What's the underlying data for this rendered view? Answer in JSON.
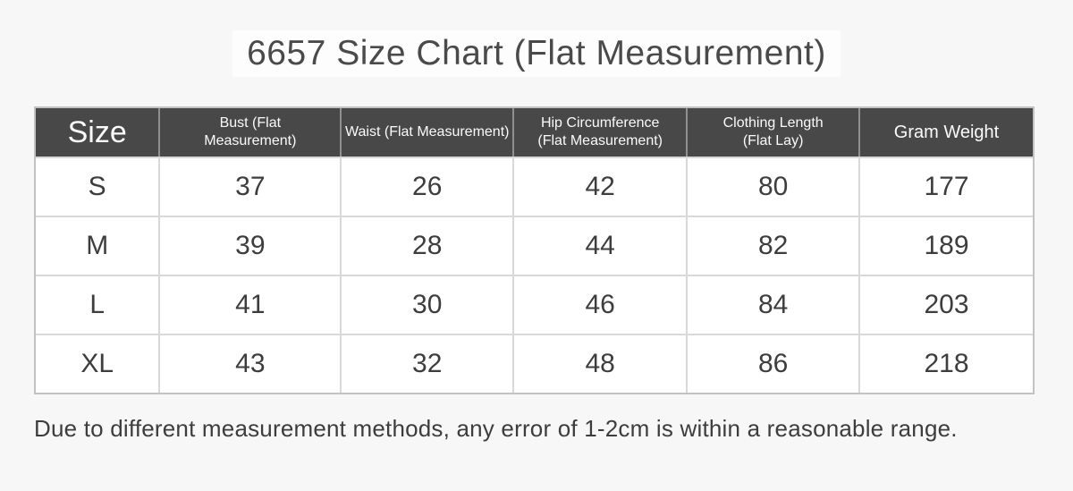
{
  "title": "6657 Size Chart (Flat Measurement)",
  "footer_note": "Due to different measurement methods, any error of 1-2cm is within a reasonable range.",
  "colors": {
    "page_background": "#f7f7f7",
    "header_background": "#484848",
    "header_text": "#fafafa",
    "header_divider": "#909090",
    "body_grid_line": "#d8d8d8",
    "outer_border": "#c2c2c2",
    "cell_text": "#3d3d3d",
    "title_text": "#4a4a4a"
  },
  "table": {
    "headers": [
      "Size",
      "Bust (Flat\nMeasurement)",
      "Waist (Flat Measurement)",
      "Hip Circumference\n(Flat Measurement)",
      "Clothing Length\n(Flat Lay)",
      "Gram Weight"
    ],
    "rows": [
      [
        "S",
        "37",
        "26",
        "42",
        "80",
        "177"
      ],
      [
        "M",
        "39",
        "28",
        "44",
        "82",
        "189"
      ],
      [
        "L",
        "41",
        "30",
        "46",
        "84",
        "203"
      ],
      [
        "XL",
        "43",
        "32",
        "48",
        "86",
        "218"
      ]
    ]
  },
  "chart_data": {
    "type": "table",
    "title": "6657 Size Chart (Flat Measurement)",
    "columns": [
      "Size",
      "Bust (Flat Measurement)",
      "Waist (Flat Measurement)",
      "Hip Circumference (Flat Measurement)",
      "Clothing Length (Flat Lay)",
      "Gram Weight"
    ],
    "rows": [
      [
        "S",
        37,
        26,
        42,
        80,
        177
      ],
      [
        "M",
        39,
        28,
        44,
        82,
        189
      ],
      [
        "L",
        41,
        30,
        46,
        84,
        203
      ],
      [
        "XL",
        43,
        32,
        48,
        86,
        218
      ]
    ],
    "note": "Due to different measurement methods, any error of 1-2cm is within a reasonable range."
  }
}
